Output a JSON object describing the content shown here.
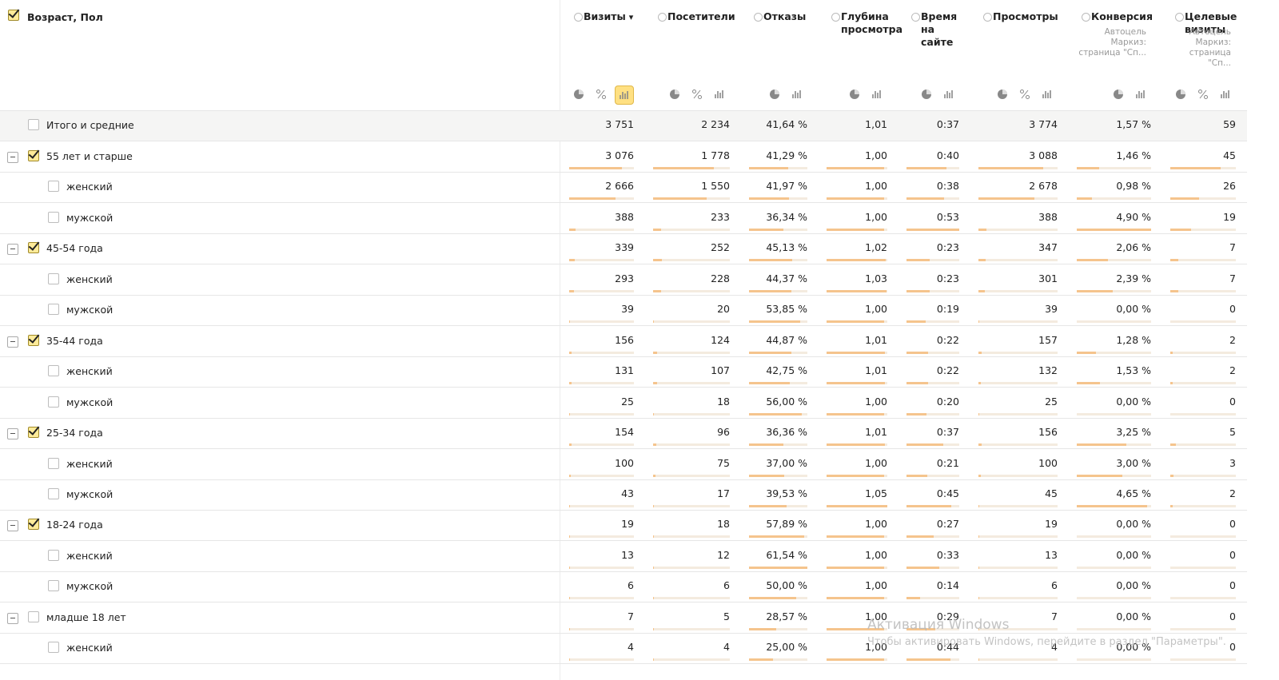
{
  "header": {
    "dimension": "Возраст, Пол",
    "dimension_checked": true,
    "columns": [
      {
        "title": "Визиты",
        "sorted": true
      },
      {
        "title": "Посетители"
      },
      {
        "title": "Отказы"
      },
      {
        "title": "Глубина просмотра"
      },
      {
        "title": "Время на сайте"
      },
      {
        "title": "Просмотры"
      },
      {
        "title": "Конверсия",
        "note": "Автоцель Маркиз: страница \"Сп..."
      },
      {
        "title": "Целевые визиты",
        "note": "Автоцель Маркиз: страница \"Сп..."
      }
    ]
  },
  "total": {
    "label": "Итого и средние",
    "values": [
      "3 751",
      "2 234",
      "41,64 %",
      "1,01",
      "0:37",
      "3 774",
      "1,57 %",
      "59"
    ]
  },
  "groups": [
    {
      "label": "55 лет и старше",
      "checked": true,
      "values": [
        "3 076",
        "1 778",
        "41,29 %",
        "1,00",
        "0:40",
        "3 088",
        "1,46 %",
        "45"
      ],
      "rows": [
        {
          "label": "женский",
          "values": [
            "2 666",
            "1 550",
            "41,97 %",
            "1,00",
            "0:38",
            "2 678",
            "0,98 %",
            "26"
          ]
        },
        {
          "label": "мужской",
          "values": [
            "388",
            "233",
            "36,34 %",
            "1,00",
            "0:53",
            "388",
            "4,90 %",
            "19"
          ]
        }
      ]
    },
    {
      "label": "45-54 года",
      "checked": true,
      "values": [
        "339",
        "252",
        "45,13 %",
        "1,02",
        "0:23",
        "347",
        "2,06 %",
        "7"
      ],
      "rows": [
        {
          "label": "женский",
          "values": [
            "293",
            "228",
            "44,37 %",
            "1,03",
            "0:23",
            "301",
            "2,39 %",
            "7"
          ]
        },
        {
          "label": "мужской",
          "values": [
            "39",
            "20",
            "53,85 %",
            "1,00",
            "0:19",
            "39",
            "0,00 %",
            "0"
          ]
        }
      ]
    },
    {
      "label": "35-44 года",
      "checked": true,
      "values": [
        "156",
        "124",
        "44,87 %",
        "1,01",
        "0:22",
        "157",
        "1,28 %",
        "2"
      ],
      "rows": [
        {
          "label": "женский",
          "values": [
            "131",
            "107",
            "42,75 %",
            "1,01",
            "0:22",
            "132",
            "1,53 %",
            "2"
          ]
        },
        {
          "label": "мужской",
          "values": [
            "25",
            "18",
            "56,00 %",
            "1,00",
            "0:20",
            "25",
            "0,00 %",
            "0"
          ]
        }
      ]
    },
    {
      "label": "25-34 года",
      "checked": true,
      "values": [
        "154",
        "96",
        "36,36 %",
        "1,01",
        "0:37",
        "156",
        "3,25 %",
        "5"
      ],
      "rows": [
        {
          "label": "женский",
          "values": [
            "100",
            "75",
            "37,00 %",
            "1,00",
            "0:21",
            "100",
            "3,00 %",
            "3"
          ]
        },
        {
          "label": "мужской",
          "values": [
            "43",
            "17",
            "39,53 %",
            "1,05",
            "0:45",
            "45",
            "4,65 %",
            "2"
          ]
        }
      ]
    },
    {
      "label": "18-24 года",
      "checked": true,
      "values": [
        "19",
        "18",
        "57,89 %",
        "1,00",
        "0:27",
        "19",
        "0,00 %",
        "0"
      ],
      "rows": [
        {
          "label": "женский",
          "values": [
            "13",
            "12",
            "61,54 %",
            "1,00",
            "0:33",
            "13",
            "0,00 %",
            "0"
          ]
        },
        {
          "label": "мужской",
          "values": [
            "6",
            "6",
            "50,00 %",
            "1,00",
            "0:14",
            "6",
            "0,00 %",
            "0"
          ]
        }
      ]
    },
    {
      "label": "младше 18 лет",
      "checked": false,
      "values": [
        "7",
        "5",
        "28,57 %",
        "1,00",
        "0:29",
        "7",
        "0,00 %",
        "0"
      ],
      "rows": [
        {
          "label": "женский",
          "values": [
            "4",
            "4",
            "25,00 %",
            "1,00",
            "0:44",
            "4",
            "0,00 %",
            "0"
          ]
        }
      ]
    }
  ],
  "watermark": {
    "title": "Активация Windows",
    "subtitle": "Чтобы активировать Windows, перейдите в раздел \"Параметры\"."
  }
}
